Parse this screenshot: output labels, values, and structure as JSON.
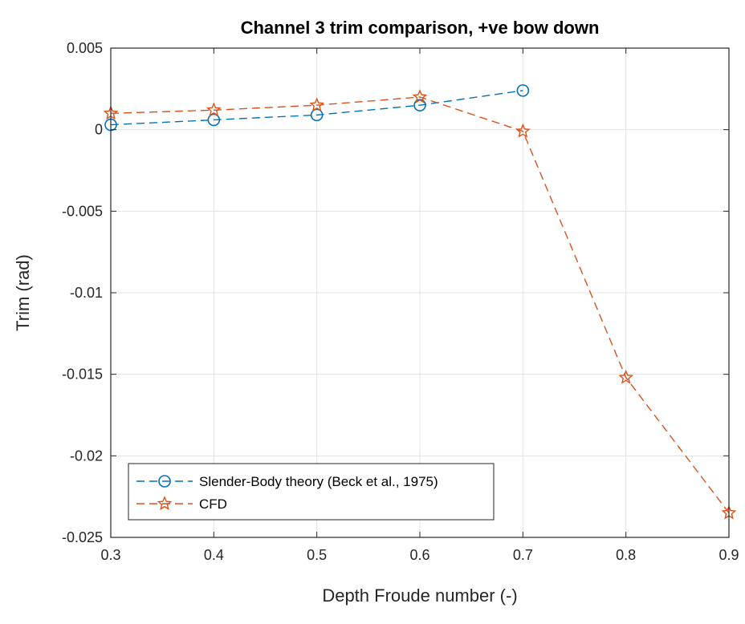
{
  "chart_data": {
    "type": "line",
    "title": "Channel 3 trim comparison, +ve bow down",
    "xlabel": "Depth Froude number (-)",
    "ylabel": "Trim (rad)",
    "xlim": [
      0.3,
      0.9
    ],
    "ylim": [
      -0.025,
      0.005
    ],
    "xticks": [
      0.3,
      0.4,
      0.5,
      0.6,
      0.7,
      0.8,
      0.9
    ],
    "xtick_labels": [
      "0.3",
      "0.4",
      "0.5",
      "0.6",
      "0.7",
      "0.8",
      "0.9"
    ],
    "yticks": [
      0.005,
      0,
      -0.005,
      -0.01,
      -0.015,
      -0.02,
      -0.025
    ],
    "ytick_labels": [
      "0.005",
      "0",
      "-0.005",
      "-0.01",
      "-0.015",
      "-0.02",
      "-0.025"
    ],
    "grid": true,
    "legend_position": "bottom-left",
    "series": [
      {
        "name": "Slender-Body theory (Beck et al., 1975)",
        "color": "#0072BD",
        "marker": "circle",
        "line_style": "dashed",
        "x": [
          0.3,
          0.4,
          0.5,
          0.6,
          0.7
        ],
        "y": [
          0.0003,
          0.0006,
          0.0009,
          0.0015,
          0.0024
        ]
      },
      {
        "name": "CFD",
        "color": "#D95319",
        "marker": "star",
        "line_style": "dashed",
        "x": [
          0.3,
          0.4,
          0.5,
          0.6,
          0.7,
          0.8,
          0.9
        ],
        "y": [
          0.001,
          0.0012,
          0.0015,
          0.002,
          -0.0001,
          -0.0152,
          -0.0235
        ]
      }
    ]
  }
}
